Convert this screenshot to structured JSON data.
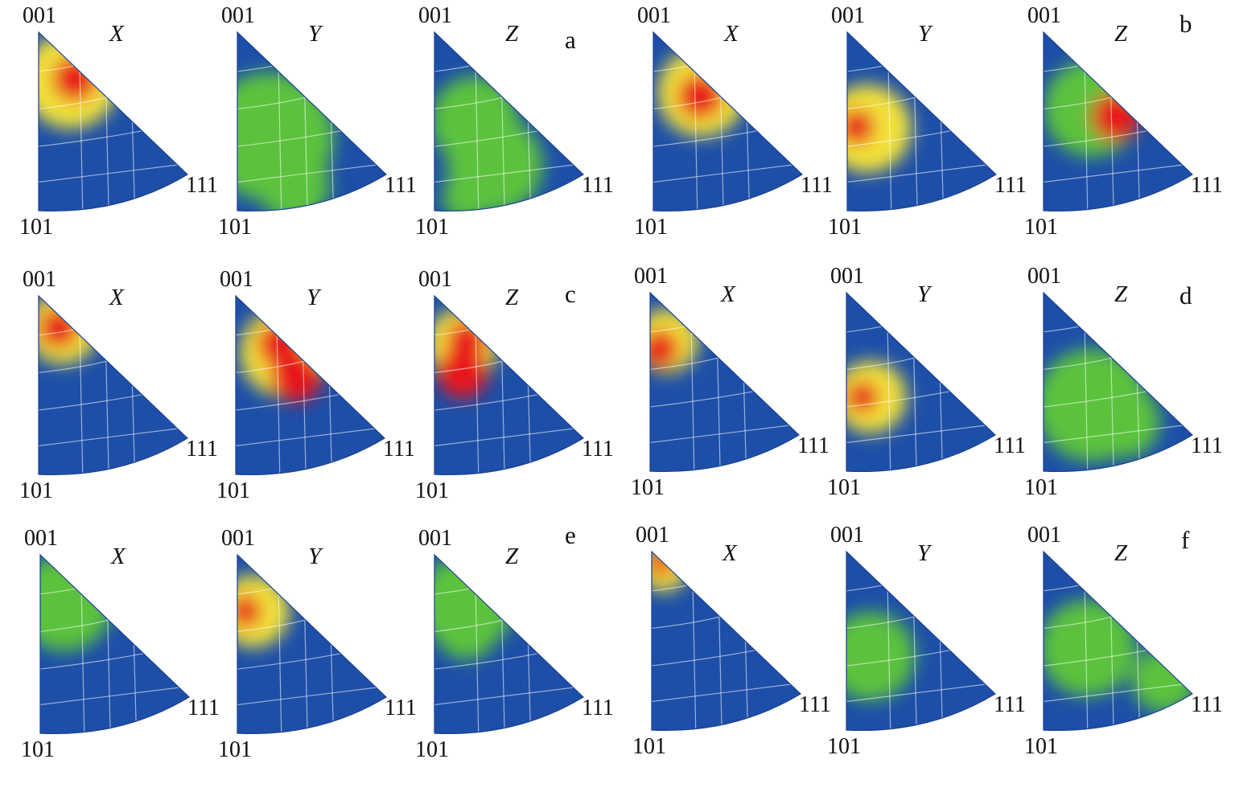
{
  "figure": {
    "corner_labels": {
      "top": "001",
      "bottom": "101",
      "right": "111"
    },
    "colors": {
      "low": "#1d4fa8",
      "mid": "#5cc23c",
      "high1": "#f2e23a",
      "high2": "#ff8a1c",
      "max": "#e8141a"
    },
    "groups": [
      {
        "letter": "a",
        "panels": [
          {
            "axis": "X"
          },
          {
            "axis": "Y"
          },
          {
            "axis": "Z"
          }
        ]
      },
      {
        "letter": "b",
        "panels": [
          {
            "axis": "X"
          },
          {
            "axis": "Y"
          },
          {
            "axis": "Z"
          }
        ]
      },
      {
        "letter": "c",
        "panels": [
          {
            "axis": "X"
          },
          {
            "axis": "Y"
          },
          {
            "axis": "Z"
          }
        ]
      },
      {
        "letter": "d",
        "panels": [
          {
            "axis": "X"
          },
          {
            "axis": "Y"
          },
          {
            "axis": "Z"
          }
        ]
      },
      {
        "letter": "e",
        "panels": [
          {
            "axis": "X"
          },
          {
            "axis": "Y"
          },
          {
            "axis": "Z"
          }
        ]
      },
      {
        "letter": "f",
        "panels": [
          {
            "axis": "X"
          },
          {
            "axis": "Y"
          },
          {
            "axis": "Z"
          }
        ]
      }
    ]
  }
}
